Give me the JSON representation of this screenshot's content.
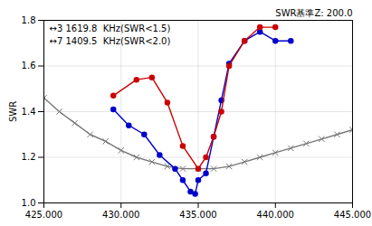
{
  "chart_data": {
    "type": "line",
    "ylabel": "SWR",
    "xlim": [
      425000,
      445000
    ],
    "ylim": [
      1.0,
      1.8
    ],
    "xticks": [
      {
        "value": 425000,
        "label": "425.000"
      },
      {
        "value": 430000,
        "label": "430.000"
      },
      {
        "value": 435000,
        "label": "435.000"
      },
      {
        "value": 440000,
        "label": "440.000"
      },
      {
        "value": 445000,
        "label": "445.000"
      }
    ],
    "yticks": [
      {
        "value": 1.0,
        "label": "1.0"
      },
      1.2,
      1.4,
      1.6,
      1.8
    ],
    "grid": true,
    "annotations": [
      "↔3 1619.8  KHz(SWR<1.5)",
      "↔7 1409.5  KHz(SWR<2.0)",
      "SWR基準Z: 200.0"
    ],
    "series": [
      {
        "color": "#777777",
        "marker": "x",
        "line_style": "solid",
        "x": [
          425000,
          426000,
          427000,
          428000,
          429000,
          430000,
          431000,
          432000,
          433000,
          434000,
          435000,
          436000,
          437000,
          438000,
          439000,
          440000,
          441000,
          442000,
          443000,
          444000,
          445000
        ],
        "values": [
          1.46,
          1.4,
          1.35,
          1.3,
          1.27,
          1.23,
          1.2,
          1.18,
          1.16,
          1.15,
          1.15,
          1.15,
          1.16,
          1.18,
          1.2,
          1.22,
          1.24,
          1.26,
          1.28,
          1.3,
          1.32
        ]
      },
      {
        "color": "#0000cc",
        "marker": "o",
        "line_style": "solid",
        "x": [
          429500,
          430500,
          431500,
          432500,
          433500,
          434000,
          434500,
          434800,
          435000,
          435500,
          436000,
          436500,
          437000,
          438000,
          439000,
          440000,
          441000
        ],
        "values": [
          1.41,
          1.34,
          1.3,
          1.21,
          1.15,
          1.1,
          1.05,
          1.04,
          1.1,
          1.13,
          1.29,
          1.45,
          1.61,
          1.71,
          1.75,
          1.71,
          1.71
        ]
      },
      {
        "color": "#cc0000",
        "marker": "o",
        "line_style": "solid",
        "x": [
          429500,
          431000,
          432000,
          433000,
          434000,
          435000,
          435500,
          436000,
          436500,
          437000,
          438000,
          439000,
          440000
        ],
        "values": [
          1.47,
          1.54,
          1.55,
          1.44,
          1.25,
          1.15,
          1.2,
          1.29,
          1.4,
          1.6,
          1.71,
          1.77,
          1.77
        ]
      }
    ]
  }
}
